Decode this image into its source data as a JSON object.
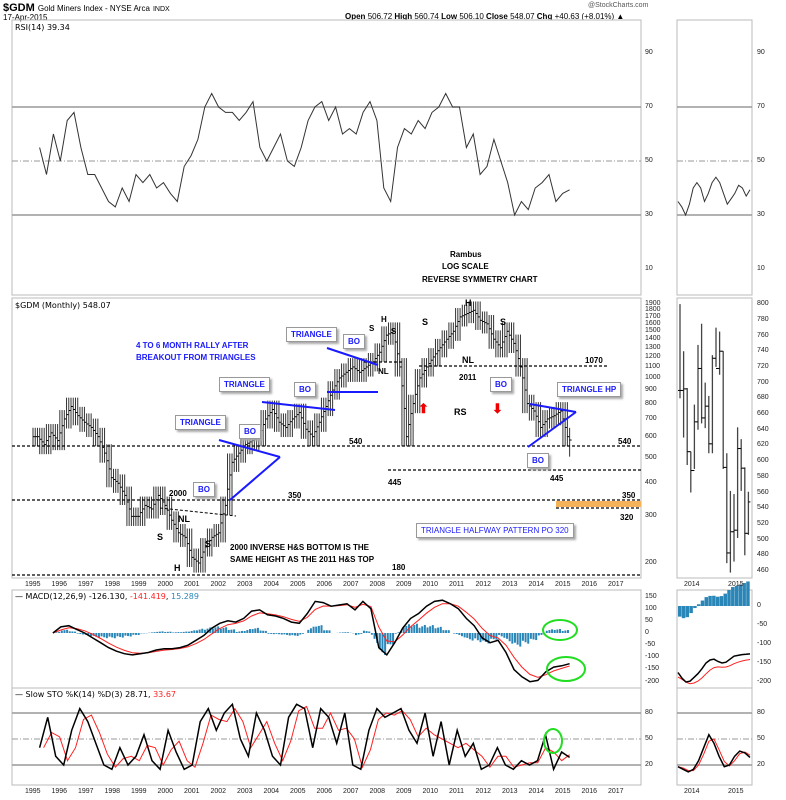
{
  "header": {
    "symbol": "$GDM",
    "name": "Gold Miners Index - NYSE Arca",
    "exchange": "INDX",
    "date": "17-Apr-2015",
    "watermark": "@StockCharts.com",
    "open_label": "Open",
    "open": "506.72",
    "high_label": "High",
    "high": "560.74",
    "low_label": "Low",
    "low": "506.10",
    "close_label": "Close",
    "close": "548.07",
    "chg_label": "Chg",
    "chg": "+40.63 (+8.01%)"
  },
  "panels": {
    "rsi_label": "RSI(14) 39.34",
    "price_label": "$GDM (Monthly) 548.07",
    "macd_label": "MACD(12,26,9)",
    "macd_v1": "-126.130",
    "macd_v2": "-141.419",
    "macd_v3": "15.289",
    "sto_label": "Slow STO %K(14) %D(3)",
    "sto_v1": "28.71",
    "sto_v2": "33.67"
  },
  "annotations": {
    "rambus": "Rambus",
    "log": "LOG SCALE",
    "rev": "REVERSE SYMMETRY CHART",
    "rally1": "4 TO 6 MONTH RALLY AFTER",
    "rally2": "BREAKOUT FROM TRIANGLES",
    "triangle": "TRIANGLE",
    "bo": "BO",
    "triangle_hp": "TRIANGLE HP",
    "halfway": "TRIANGLE HALFWAY PATTERN PO 320",
    "s": "S",
    "h": "H",
    "nl": "NL",
    "rs": "RS",
    "y2011": "2011",
    "y2000": "2000",
    "l540": "540",
    "l445": "445",
    "l350": "350",
    "l320": "320",
    "l180": "180",
    "l1070": "1070",
    "inv1": "2000 INVERSE H&S BOTTOM IS THE",
    "inv2": "SAME HEIGHT AS THE 2011 H&S TOP"
  },
  "colors": {
    "price": "#333333",
    "macd": "#000000",
    "signal": "#ff2020",
    "hist": "#2b86b8",
    "annotation": "#1a1aff",
    "highlight": "#22dd22",
    "target_band": "#f5b25a"
  },
  "chart_data": [
    {
      "type": "line",
      "title": "RSI(14)",
      "x_range": [
        1995,
        2017.5
      ],
      "ylim": [
        0,
        100
      ],
      "y_ticks": [
        90,
        70,
        50,
        30,
        10
      ],
      "ref_lines": [
        70,
        50,
        30
      ],
      "x_start": 1995.25,
      "x_end": 2015.25,
      "values": [
        55,
        45,
        60,
        50,
        65,
        68,
        55,
        45,
        45,
        40,
        35,
        33,
        40,
        35,
        45,
        42,
        45,
        40,
        42,
        38,
        35,
        48,
        52,
        58,
        70,
        75,
        70,
        68,
        68,
        65,
        68,
        72,
        55,
        50,
        55,
        60,
        50,
        48,
        55,
        65,
        70,
        72,
        65,
        70,
        60,
        62,
        60,
        68,
        72,
        65,
        40,
        35,
        55,
        62,
        60,
        65,
        62,
        68,
        70,
        75,
        70,
        70,
        55,
        60,
        45,
        48,
        58,
        50,
        42,
        30,
        35,
        32,
        40,
        42,
        45,
        35,
        38,
        39.34
      ]
    },
    {
      "type": "ohlc",
      "title": "$GDM (Monthly)",
      "scale": "log",
      "ylim": [
        180,
        1900
      ],
      "y_ticks": [
        1900,
        1800,
        1700,
        1600,
        1500,
        1400,
        1300,
        1200,
        1100,
        1000,
        900,
        800,
        700,
        600,
        500,
        400,
        300,
        200
      ],
      "x_ticks": [
        "1995",
        "1996",
        "1997",
        "1998",
        "1999",
        "2000",
        "2001",
        "2002",
        "2003",
        "2004",
        "2005",
        "2006",
        "2007",
        "2008",
        "2009",
        "2010",
        "2011",
        "2012",
        "2013",
        "2014",
        "2015",
        "2016",
        "2017"
      ],
      "x_start": 1995.0,
      "x_end": 2015.25,
      "closes": [
        600,
        560,
        620,
        580,
        700,
        780,
        720,
        680,
        650,
        600,
        520,
        420,
        400,
        360,
        300,
        300,
        330,
        320,
        360,
        330,
        290,
        260,
        250,
        210,
        200,
        230,
        250,
        260,
        330,
        480,
        520,
        560,
        580,
        600,
        700,
        760,
        680,
        650,
        700,
        740,
        640,
        600,
        680,
        780,
        900,
        1000,
        1050,
        1100,
        1050,
        1100,
        1150,
        1250,
        1450,
        1500,
        1100,
        600,
        800,
        1000,
        1100,
        1200,
        1300,
        1400,
        1500,
        1700,
        1750,
        1800,
        1650,
        1600,
        1400,
        1300,
        1500,
        1350,
        1100,
        800,
        750,
        650,
        700,
        720,
        750,
        600,
        548.07
      ],
      "levels": [
        540,
        445,
        350,
        320,
        180,
        1070
      ]
    },
    {
      "type": "line",
      "title": "MACD(12,26,9)",
      "ylim": [
        -220,
        170
      ],
      "y_ticks": [
        150,
        100,
        50,
        0,
        -50,
        -100,
        -150,
        -200
      ],
      "x_start": 1995.75,
      "x_end": 2015.25,
      "macd": [
        0,
        25,
        30,
        15,
        0,
        -20,
        -40,
        -60,
        -75,
        -85,
        -90,
        -85,
        -80,
        -70,
        -65,
        -65,
        -60,
        -50,
        -30,
        -10,
        20,
        40,
        50,
        45,
        60,
        90,
        95,
        75,
        70,
        60,
        45,
        40,
        80,
        130,
        125,
        110,
        115,
        120,
        95,
        130,
        100,
        -60,
        -90,
        -40,
        20,
        60,
        80,
        110,
        130,
        135,
        120,
        100,
        60,
        30,
        -20,
        -40,
        -30,
        -80,
        -150,
        -180,
        -200,
        -195,
        -160,
        -140,
        -135,
        -126.13
      ]
    },
    {
      "type": "line",
      "title": "Slow STO %K(14) %D(3)",
      "ylim": [
        0,
        100
      ],
      "y_ticks": [
        80,
        50,
        20
      ],
      "ref_lines": [
        80,
        50,
        20
      ],
      "x_start": 1995.25,
      "x_end": 2015.25,
      "k": [
        40,
        75,
        30,
        20,
        60,
        85,
        70,
        45,
        20,
        15,
        40,
        20,
        30,
        55,
        25,
        15,
        60,
        35,
        15,
        20,
        70,
        85,
        60,
        80,
        90,
        50,
        30,
        80,
        60,
        30,
        20,
        75,
        90,
        85,
        40,
        85,
        75,
        45,
        80,
        20,
        15,
        60,
        85,
        75,
        80,
        85,
        60,
        45,
        80,
        30,
        70,
        20,
        60,
        30,
        45,
        15,
        20,
        40,
        20,
        15,
        25,
        20,
        25,
        55,
        15,
        35,
        28.71
      ]
    },
    {
      "type": "ohlc",
      "title": "$GDM detail",
      "ylim": [
        455,
        805
      ],
      "y_ticks": [
        800,
        780,
        760,
        740,
        720,
        700,
        680,
        660,
        640,
        620,
        600,
        580,
        560,
        540,
        520,
        500,
        480,
        460
      ],
      "x_ticks": [
        "2014",
        "2015"
      ],
      "bars": [
        [
          800,
          680,
          690
        ],
        [
          740,
          630,
          692
        ],
        [
          693,
          595,
          612
        ],
        [
          612,
          560,
          588
        ],
        [
          672,
          590,
          650
        ],
        [
          748,
          640,
          718
        ],
        [
          775,
          648,
          655
        ],
        [
          700,
          642,
          670
        ],
        [
          683,
          610,
          622
        ],
        [
          735,
          610,
          731
        ],
        [
          770,
          720,
          718
        ],
        [
          765,
          710,
          740
        ],
        [
          740,
          590,
          592
        ],
        [
          610,
          470,
          483
        ],
        [
          562,
          458,
          510
        ],
        [
          558,
          472,
          512
        ],
        [
          643,
          502,
          616
        ],
        [
          628,
          562,
          591
        ],
        [
          592,
          480,
          508
        ],
        [
          561,
          506,
          548
        ]
      ],
      "rsi": [
        35,
        33,
        30,
        34,
        40,
        42,
        40,
        35,
        38,
        42,
        44,
        42,
        38,
        34,
        36,
        38,
        41,
        40,
        37,
        39.34
      ],
      "macd": [
        -175,
        -190,
        -200,
        -198,
        -188,
        -178,
        -165,
        -150,
        -142,
        -140,
        -146,
        -150,
        -148,
        -140,
        -132,
        -130,
        -128,
        -127,
        -126.13
      ],
      "sto": [
        18,
        15,
        12,
        15,
        25,
        40,
        55,
        45,
        30,
        18,
        20,
        30,
        36,
        34,
        28.71
      ]
    }
  ]
}
